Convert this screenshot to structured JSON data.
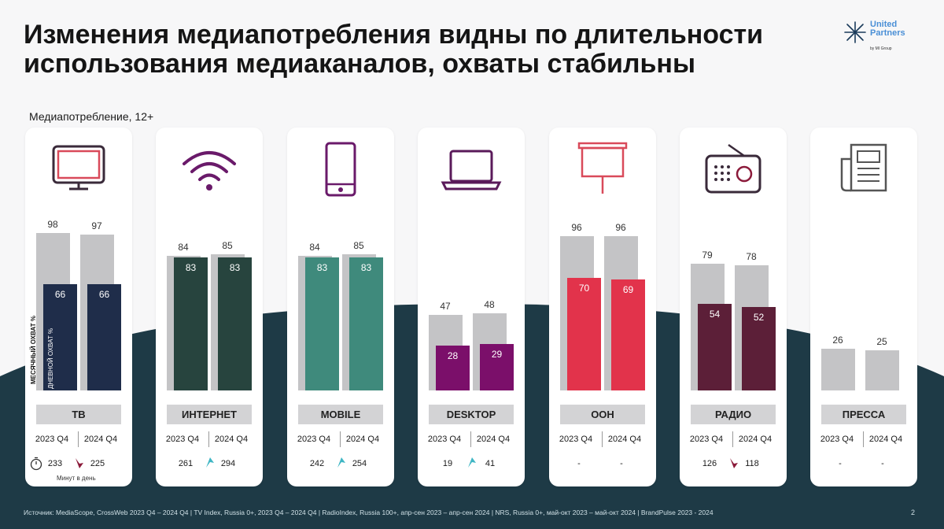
{
  "header": {
    "title_line1": "Изменения медиапотребления видны по длительности",
    "title_line2": "использования медиаканалов, охваты стабильны",
    "logo_line1": "United",
    "logo_line2": "Partners",
    "logo_sub": "by MI Group"
  },
  "subtitle": "Медиапотребление, 12+",
  "axis_labels": {
    "monthly": "МЕСЯЧНЫЙ ОХВАТ %",
    "daily": "ДНЕВНОЙ ОХВАТ %"
  },
  "minutes_note": "Минут в день",
  "colors": {
    "tv": "#1f2d4a",
    "internet": "#27443e",
    "mobile": "#3f8a7c",
    "desktop": "#7b0f6a",
    "ooh": "#e2334b",
    "radio": "#5c1f38",
    "press": "#c4c4c6",
    "gray": "#c4c4c6",
    "bg_dark": "#1e3a46",
    "up_arrow": "#3fb6c4",
    "down_arrow": "#8b1a3a"
  },
  "channels": [
    {
      "label": "ТВ",
      "y1": "2023 Q4",
      "y2": "2024 Q4",
      "m1": "98",
      "m2": "97",
      "d1": "66",
      "d2": "66",
      "min1": "233",
      "min2": "225",
      "trend": "down",
      "icon": "tv-icon"
    },
    {
      "label": "ИНТЕРНЕТ",
      "y1": "2023 Q4",
      "y2": "2024 Q4",
      "m1": "84",
      "m2": "85",
      "d1": "83",
      "d2": "83",
      "min1": "261",
      "min2": "294",
      "trend": "up",
      "icon": "wifi-icon"
    },
    {
      "label": "MOBILE",
      "y1": "2023 Q4",
      "y2": "2024 Q4",
      "m1": "84",
      "m2": "85",
      "d1": "83",
      "d2": "83",
      "min1": "242",
      "min2": "254",
      "trend": "up",
      "icon": "smartphone-icon"
    },
    {
      "label": "DESKTOP",
      "y1": "2023 Q4",
      "y2": "2024 Q4",
      "m1": "47",
      "m2": "48",
      "d1": "28",
      "d2": "29",
      "min1": "19",
      "min2": "41",
      "trend": "up",
      "icon": "laptop-icon"
    },
    {
      "label": "OOH",
      "y1": "2023 Q4",
      "y2": "2024 Q4",
      "m1": "96",
      "m2": "96",
      "d1": "70",
      "d2": "69",
      "min1": "-",
      "min2": "-",
      "trend": "none",
      "icon": "billboard-icon"
    },
    {
      "label": "РАДИО",
      "y1": "2023 Q4",
      "y2": "2024 Q4",
      "m1": "79",
      "m2": "78",
      "d1": "54",
      "d2": "52",
      "min1": "126",
      "min2": "118",
      "trend": "down",
      "icon": "radio-icon"
    },
    {
      "label": "ПРЕССА",
      "y1": "2023 Q4",
      "y2": "2024 Q4",
      "m1": "26",
      "m2": "25",
      "d1": "",
      "d2": "",
      "min1": "-",
      "min2": "-",
      "trend": "none",
      "icon": "newspaper-icon"
    }
  ],
  "chart_data": {
    "type": "bar",
    "categories": [
      "ТВ",
      "ИНТЕРНЕТ",
      "MOBILE",
      "DESKTOP",
      "OOH",
      "РАДИО",
      "ПРЕССА"
    ],
    "series": [
      {
        "name": "МЕСЯЧНЫЙ ОХВАТ %",
        "period": "2023 Q4",
        "values": [
          98,
          84,
          84,
          47,
          96,
          79,
          26
        ]
      },
      {
        "name": "МЕСЯЧНЫЙ ОХВАТ %",
        "period": "2024 Q4",
        "values": [
          97,
          85,
          85,
          48,
          96,
          78,
          25
        ]
      },
      {
        "name": "ДНЕВНОЙ ОХВАТ %",
        "period": "2023 Q4",
        "values": [
          66,
          83,
          83,
          28,
          70,
          54,
          null
        ]
      },
      {
        "name": "ДНЕВНОЙ ОХВАТ %",
        "period": "2024 Q4",
        "values": [
          66,
          83,
          83,
          29,
          69,
          52,
          null
        ]
      }
    ],
    "minutes_per_day": {
      "2023 Q4": [
        233,
        261,
        242,
        19,
        null,
        126,
        null
      ],
      "2024 Q4": [
        225,
        294,
        254,
        41,
        null,
        118,
        null
      ]
    },
    "ylim": [
      0,
      100
    ]
  },
  "footer": "Источник: MediaScope, CrossWeb  2023 Q4 – 2024 Q4 | TV Index, Russia 0+, 2023 Q4 – 2024 Q4 | RadioIndex, Russia 100+, апр-сен 2023 – апр-сен 2024 | NRS, Russia 0+, май-окт 2023 – май-окт 2024 | BrandPulse 2023 - 2024",
  "page_number": "2"
}
